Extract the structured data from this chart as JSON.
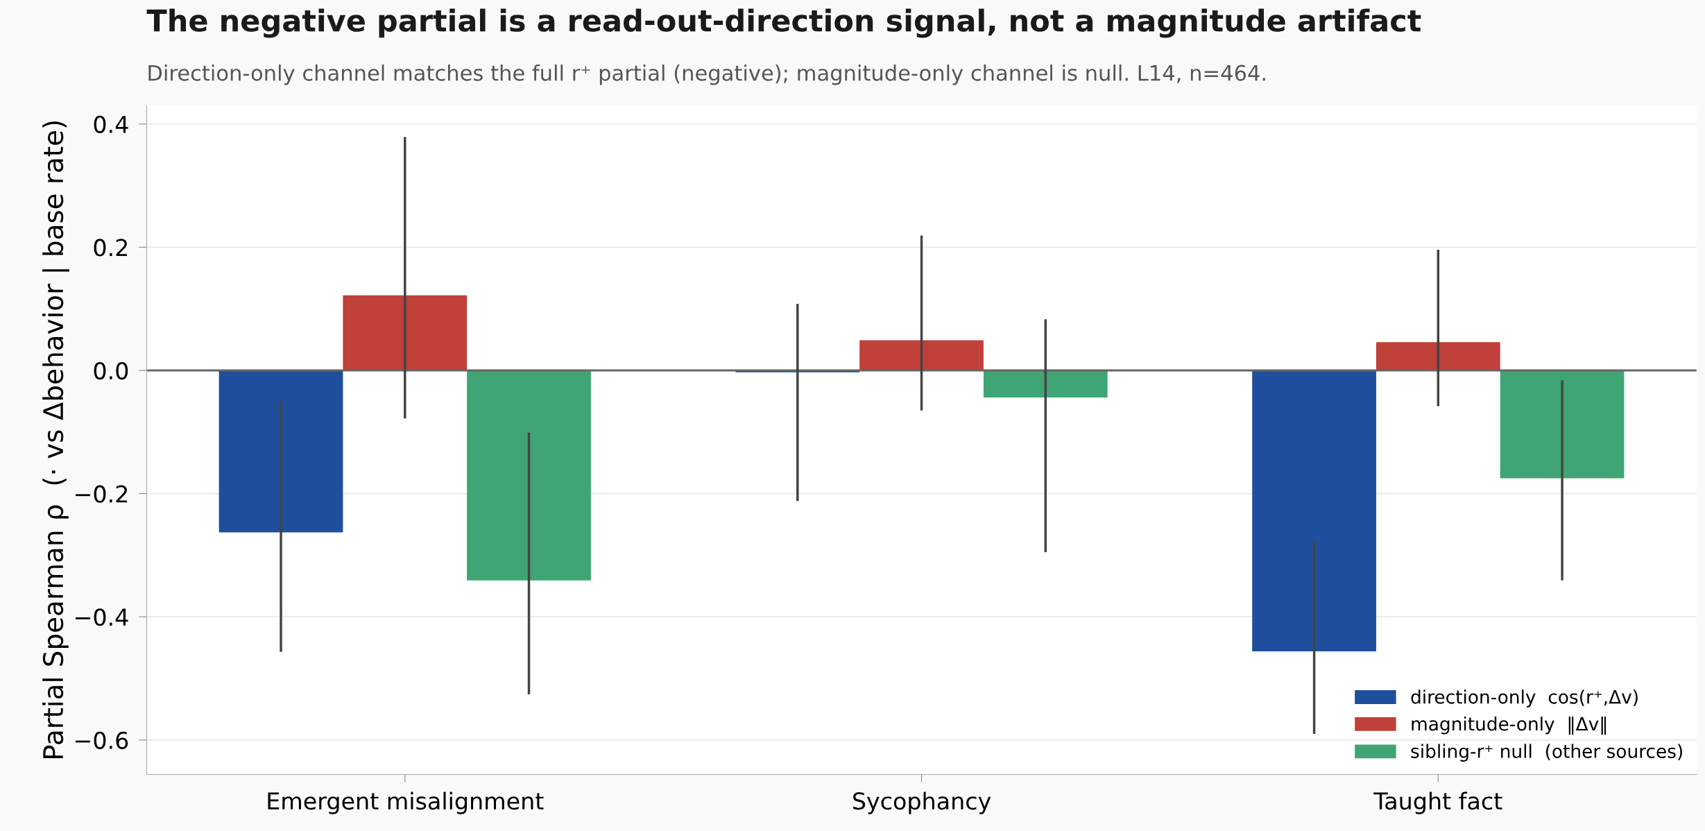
{
  "chart_data": {
    "type": "bar",
    "title": "The negative partial is a read-out-direction signal, not a magnitude artifact",
    "subtitle": "Direction-only channel matches the full r⁺ partial (negative); magnitude-only channel is null. L14, n=464.",
    "ylabel": "Partial Spearman ρ  (· vs Δbehavior | base rate)",
    "categories": [
      "Emergent misalignment",
      "Sycophancy",
      "Taught fact"
    ],
    "series": [
      {
        "name": "direction-only  cos(r⁺,Δv)",
        "color": "#1f4e9c",
        "values": [
          -0.263,
          -0.003,
          -0.456
        ],
        "errors": [
          [
            -0.457,
            -0.051
          ],
          [
            -0.212,
            0.108
          ],
          [
            -0.59,
            -0.277
          ]
        ]
      },
      {
        "name": "magnitude-only  ‖Δv‖",
        "color": "#c0403a",
        "values": [
          0.122,
          0.049,
          0.046
        ],
        "errors": [
          [
            -0.078,
            0.379
          ],
          [
            -0.065,
            0.219
          ],
          [
            -0.058,
            0.196
          ]
        ]
      },
      {
        "name": "sibling-r⁺ null  (other sources)",
        "color": "#3fa574",
        "values": [
          -0.341,
          -0.044,
          -0.175
        ],
        "errors": [
          [
            -0.526,
            -0.101
          ],
          [
            -0.295,
            0.083
          ],
          [
            -0.341,
            -0.016
          ]
        ]
      }
    ],
    "ylim": [
      -0.656,
      0.43
    ],
    "yticks": [
      {
        "value": -0.6,
        "label": "−0.6"
      },
      {
        "value": -0.4,
        "label": "−0.4"
      },
      {
        "value": -0.2,
        "label": "−0.2"
      },
      {
        "value": 0,
        "label": "0.0"
      },
      {
        "value": 0.2,
        "label": "0.2"
      },
      {
        "value": 0.4,
        "label": "0.4"
      }
    ],
    "ref_lines": [
      {
        "axis": "y",
        "value": 0,
        "color": "#666666"
      }
    ],
    "grid": "y",
    "legend": "bottom right"
  }
}
